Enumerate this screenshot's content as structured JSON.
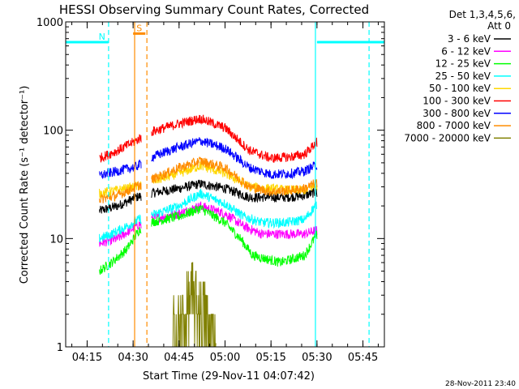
{
  "chart_data": {
    "type": "line",
    "title": "HESSI Observing Summary Count Rates, Corrected",
    "xlabel": "Start Time (29-Nov-11 04:07:42)",
    "ylabel": "Corrected Count Rate (s⁻¹ detector⁻¹)",
    "yscale": "log",
    "ylim": [
      1,
      1000
    ],
    "y_ticks": [
      "1",
      "10",
      "100",
      "1000"
    ],
    "x_range_min": [
      248,
      352
    ],
    "x_ticks": [
      {
        "label": "04:15",
        "min": 255
      },
      {
        "label": "04:30",
        "min": 270
      },
      {
        "label": "04:45",
        "min": 285
      },
      {
        "label": "05:00",
        "min": 300
      },
      {
        "label": "05:15",
        "min": 315
      },
      {
        "label": "05:30",
        "min": 330
      },
      {
        "label": "05:45",
        "min": 345
      }
    ],
    "legend": {
      "header1": "Det 1,3,4,5,6,",
      "header2": "Att 0",
      "placement": "right"
    },
    "series": [
      {
        "name": "3 - 6 keV",
        "color": "#000000",
        "points": [
          [
            259,
            18
          ],
          [
            265,
            20
          ],
          [
            271,
            24
          ],
          [
            275,
            26
          ],
          [
            285,
            29
          ],
          [
            292,
            32
          ],
          [
            300,
            29
          ],
          [
            308,
            24
          ],
          [
            320,
            24
          ],
          [
            326,
            25
          ],
          [
            330,
            27
          ]
        ]
      },
      {
        "name": "6 - 12 keV",
        "color": "#ff00ff",
        "points": [
          [
            259,
            9
          ],
          [
            265,
            10
          ],
          [
            271,
            13
          ],
          [
            275,
            15
          ],
          [
            285,
            17
          ],
          [
            292,
            20
          ],
          [
            300,
            17
          ],
          [
            306,
            13
          ],
          [
            312,
            11
          ],
          [
            320,
            11
          ],
          [
            326,
            11
          ],
          [
            330,
            12
          ]
        ]
      },
      {
        "name": "12 - 25 keV",
        "color": "#00ff00",
        "points": [
          [
            259,
            5
          ],
          [
            263,
            6
          ],
          [
            268,
            8
          ],
          [
            272,
            12
          ],
          [
            275,
            14
          ],
          [
            285,
            16
          ],
          [
            292,
            19
          ],
          [
            300,
            14
          ],
          [
            305,
            10
          ],
          [
            309,
            7
          ],
          [
            318,
            6
          ],
          [
            326,
            7
          ],
          [
            330,
            11
          ]
        ]
      },
      {
        "name": "25 - 50 keV",
        "color": "#00ffff",
        "points": [
          [
            259,
            10
          ],
          [
            263,
            11
          ],
          [
            268,
            13
          ],
          [
            272,
            15
          ],
          [
            275,
            16
          ],
          [
            285,
            20
          ],
          [
            292,
            26
          ],
          [
            300,
            21
          ],
          [
            306,
            16
          ],
          [
            312,
            14
          ],
          [
            320,
            14
          ],
          [
            326,
            15
          ],
          [
            330,
            21
          ]
        ]
      },
      {
        "name": "50 - 100 keV",
        "color": "#ffd700",
        "points": [
          [
            259,
            26
          ],
          [
            265,
            28
          ],
          [
            271,
            30
          ],
          [
            275,
            33
          ],
          [
            285,
            40
          ],
          [
            292,
            47
          ],
          [
            300,
            40
          ],
          [
            308,
            30
          ],
          [
            320,
            28
          ],
          [
            326,
            28
          ],
          [
            330,
            31
          ]
        ]
      },
      {
        "name": "100 - 300 keV",
        "color": "#ff0000",
        "points": [
          [
            259,
            55
          ],
          [
            265,
            65
          ],
          [
            271,
            80
          ],
          [
            275,
            95
          ],
          [
            285,
            115
          ],
          [
            292,
            128
          ],
          [
            300,
            105
          ],
          [
            308,
            65
          ],
          [
            315,
            55
          ],
          [
            322,
            57
          ],
          [
            326,
            60
          ],
          [
            330,
            78
          ]
        ]
      },
      {
        "name": "300 - 800 keV",
        "color": "#0000ff",
        "points": [
          [
            259,
            38
          ],
          [
            265,
            42
          ],
          [
            271,
            46
          ],
          [
            275,
            55
          ],
          [
            285,
            70
          ],
          [
            292,
            80
          ],
          [
            300,
            68
          ],
          [
            308,
            45
          ],
          [
            315,
            39
          ],
          [
            322,
            40
          ],
          [
            326,
            42
          ],
          [
            330,
            48
          ]
        ]
      },
      {
        "name": "800 - 7000 keV",
        "color": "#ff8c00",
        "points": [
          [
            259,
            23
          ],
          [
            265,
            25
          ],
          [
            271,
            30
          ],
          [
            275,
            34
          ],
          [
            285,
            45
          ],
          [
            292,
            52
          ],
          [
            300,
            45
          ],
          [
            308,
            30
          ],
          [
            315,
            27
          ],
          [
            322,
            28
          ],
          [
            326,
            29
          ],
          [
            330,
            33
          ]
        ]
      },
      {
        "name": "7000 - 20000 keV",
        "color": "#808000",
        "points": [
          [
            283,
            1.2
          ],
          [
            287,
            1.8
          ],
          [
            289,
            2.8
          ],
          [
            291,
            2.4
          ],
          [
            293,
            2.0
          ],
          [
            295,
            1.5
          ],
          [
            297,
            1.2
          ]
        ]
      }
    ],
    "attenuator_bars": [
      {
        "label": "N",
        "color": "#00ffff",
        "from": 248,
        "to": 262,
        "level": 650
      },
      {
        "label": "S",
        "color": "#ff8c00",
        "from": 270,
        "to": 274,
        "level": 780
      },
      {
        "label": "",
        "color": "#00ffff",
        "from": 330,
        "to": 352,
        "level": 650
      }
    ],
    "markers": [
      {
        "color": "#00ffff",
        "min": 262,
        "style": "dashed"
      },
      {
        "color": "#ff8c00",
        "min": 270.5,
        "style": "solid"
      },
      {
        "color": "#ff8c00",
        "min": 274.5,
        "style": "dashed"
      },
      {
        "color": "#00ffff",
        "min": 329.5,
        "style": "solid"
      },
      {
        "color": "#00ffff",
        "min": 347,
        "style": "dashed"
      }
    ],
    "grid": false
  },
  "footer": {
    "timestamp": "28-Nov-2011 23:40"
  }
}
